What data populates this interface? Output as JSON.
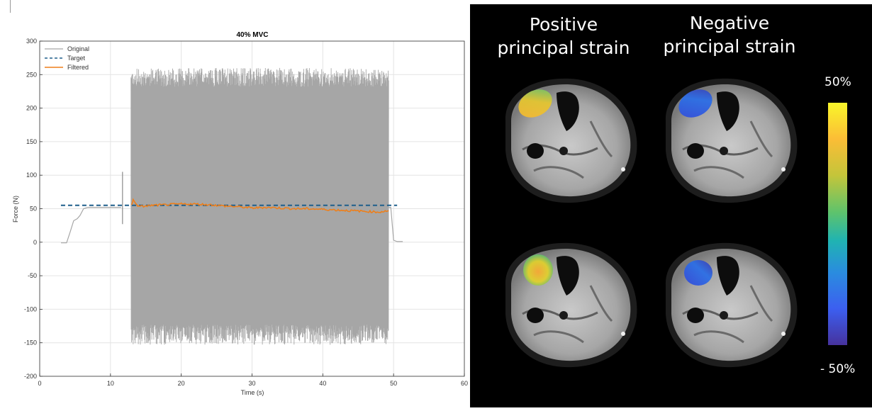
{
  "chart_data": {
    "type": "line",
    "title": "40% MVC",
    "xlabel": "Time (s)",
    "ylabel": "Force (N)",
    "xlim": [
      0,
      60
    ],
    "ylim": [
      -200,
      300
    ],
    "xticks": [
      0,
      10,
      20,
      30,
      40,
      50,
      60
    ],
    "yticks": [
      -200,
      -150,
      -100,
      -50,
      0,
      50,
      100,
      150,
      200,
      250,
      300
    ],
    "grid": true,
    "legend_position": "top-left",
    "series": [
      {
        "name": "Original",
        "style": "solid",
        "color": "#a6a6a6",
        "ramp": [
          [
            3,
            -1
          ],
          [
            3.8,
            -1
          ],
          [
            4.3,
            15
          ],
          [
            4.8,
            32
          ],
          [
            5.3,
            35
          ],
          [
            5.7,
            40
          ],
          [
            6.2,
            50
          ],
          [
            6.8,
            52
          ],
          [
            9,
            52
          ],
          [
            11.5,
            52
          ]
        ],
        "spike": {
          "x": 11.7,
          "min": 27,
          "max": 105
        },
        "oscillation": {
          "start": 12.9,
          "end": 49.3,
          "min_approx": -145,
          "max_approx": 252
        },
        "tail": [
          [
            49.3,
            52
          ],
          [
            49.6,
            52
          ],
          [
            50.0,
            3
          ],
          [
            50.5,
            1
          ],
          [
            51.3,
            1
          ]
        ]
      },
      {
        "name": "Target",
        "style": "dashed",
        "color": "#1f5f8b",
        "x": [
          3,
          50.5
        ],
        "y": [
          55,
          55
        ]
      },
      {
        "name": "Filtered",
        "style": "solid",
        "color": "#ee7f1a",
        "x": [
          13,
          13.2,
          14,
          16,
          18,
          20,
          22,
          24,
          26,
          28,
          30,
          32,
          34,
          36,
          38,
          40,
          42,
          44,
          46,
          48,
          49.3
        ],
        "y": [
          55,
          63,
          53,
          55,
          56,
          57,
          57,
          56,
          54,
          53,
          51,
          52,
          51,
          50,
          50,
          49,
          48,
          47,
          46,
          45,
          47
        ]
      }
    ]
  },
  "mri": {
    "col1_title": "Positive\nprincipal strain",
    "col2_title": "Negative\nprincipal strain",
    "colorbar_max": "50%",
    "colorbar_min": "- 50%",
    "colors": {
      "background": "#000000",
      "text": "#ffffff"
    }
  }
}
